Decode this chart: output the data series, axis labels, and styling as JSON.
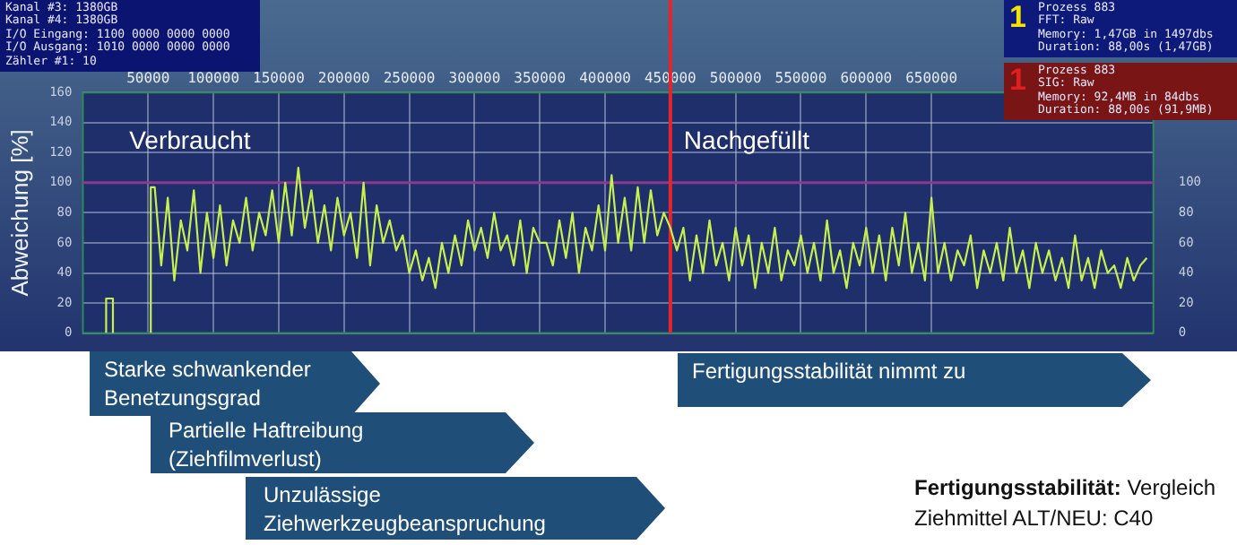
{
  "chart_data": {
    "type": "line",
    "ylabel": "Abweichung [%]",
    "xlim": [
      0,
      820000
    ],
    "xticks": [
      50000,
      100000,
      150000,
      200000,
      250000,
      300000,
      350000,
      400000,
      450000,
      500000,
      550000,
      600000,
      650000
    ],
    "ylim": [
      0,
      160
    ],
    "yticks": [
      0,
      20,
      40,
      60,
      80,
      100,
      120,
      140,
      160
    ],
    "y2lim": [
      0,
      160
    ],
    "y2ticks": [
      0,
      20,
      40,
      60,
      80,
      100
    ],
    "grid": true,
    "ref_lines": [
      {
        "axis": "y",
        "value": 100,
        "color": "#8b3a8e"
      },
      {
        "axis": "x",
        "value": 450000,
        "color": "#e3262c"
      }
    ],
    "series": [
      {
        "color": "#c6f04e",
        "x": [
          17800,
          17800,
          23000,
          23000,
          35000,
          52000,
          52000,
          55000,
          60000,
          65000,
          70000,
          75000,
          80000,
          85000,
          90000,
          95000,
          100000,
          105000,
          110000,
          115000,
          120000,
          125000,
          130000,
          135000,
          140000,
          145000,
          150000,
          155000,
          160000,
          165000,
          170000,
          175000,
          180000,
          185000,
          190000,
          195000,
          200000,
          205000,
          210000,
          215000,
          220000,
          225000,
          230000,
          235000,
          240000,
          245000,
          250000,
          255000,
          260000,
          265000,
          270000,
          275000,
          280000,
          285000,
          290000,
          295000,
          300000,
          305000,
          310000,
          315000,
          320000,
          325000,
          330000,
          335000,
          340000,
          345000,
          350000,
          355000,
          360000,
          365000,
          370000,
          375000,
          380000,
          385000,
          390000,
          395000,
          400000,
          405000,
          410000,
          415000,
          420000,
          425000,
          430000,
          435000,
          440000,
          445000,
          450000,
          455000,
          460000,
          465000,
          470000,
          475000,
          480000,
          485000,
          490000,
          495000,
          500000,
          505000,
          510000,
          515000,
          520000,
          525000,
          530000,
          535000,
          540000,
          545000,
          550000,
          555000,
          560000,
          565000,
          570000,
          575000,
          580000,
          585000,
          590000,
          595000,
          600000,
          605000,
          610000,
          615000,
          620000,
          625000,
          630000,
          635000,
          640000,
          645000,
          650000,
          655000,
          660000,
          665000,
          670000,
          675000,
          680000,
          685000,
          690000,
          695000,
          700000,
          705000,
          710000,
          715000,
          720000,
          725000,
          730000,
          735000,
          740000,
          745000,
          750000,
          755000,
          760000,
          765000,
          770000,
          775000,
          780000,
          785000,
          790000,
          795000,
          800000,
          805000,
          810000,
          815000
        ],
        "values": [
          0,
          23,
          23,
          0,
          null,
          0,
          97,
          97,
          45,
          90,
          35,
          75,
          55,
          95,
          40,
          80,
          50,
          85,
          45,
          75,
          60,
          90,
          55,
          80,
          65,
          95,
          60,
          100,
          65,
          110,
          70,
          95,
          60,
          85,
          55,
          90,
          65,
          80,
          50,
          100,
          45,
          85,
          60,
          75,
          55,
          65,
          40,
          55,
          35,
          50,
          30,
          60,
          40,
          65,
          45,
          75,
          55,
          70,
          50,
          80,
          55,
          65,
          45,
          75,
          40,
          70,
          60,
          60,
          45,
          75,
          50,
          80,
          40,
          70,
          55,
          85,
          55,
          105,
          60,
          90,
          55,
          97,
          60,
          95,
          65,
          80,
          70,
          55,
          70,
          35,
          65,
          40,
          75,
          45,
          60,
          35,
          70,
          45,
          65,
          30,
          60,
          40,
          70,
          35,
          55,
          45,
          65,
          40,
          60,
          35,
          75,
          40,
          55,
          30,
          60,
          45,
          70,
          40,
          65,
          35,
          70,
          45,
          80,
          40,
          60,
          35,
          90,
          40,
          60,
          35,
          55,
          45,
          65,
          30,
          55,
          40,
          60,
          35,
          70,
          40,
          55,
          30,
          60,
          40,
          55,
          35,
          50,
          30,
          65,
          35,
          50,
          30,
          55,
          40,
          45,
          30,
          50,
          35,
          45,
          50
        ]
      }
    ],
    "annotations": [
      "Verbraucht",
      "Nachgefüllt",
      "Starke schwankender Benetzungsgrad",
      "Partielle Haftreibung (Ziehfilmverlust)",
      "Unzulässige Ziehwerkzeugbeanspruchung",
      "Fertigungsstabilität nimmt zu",
      "Fertigungsstabilität:",
      "Vergleich Ziehmittel ALT/NEU: C40",
      "Kanal #3: 1380GB",
      "Kanal #4: 1380GB",
      "I/O Eingang: 1100 0000 0000 0000",
      "I/O Ausgang: 1010 0000 0000 0000",
      "Zähler #1: 10",
      "1",
      "Prozess 883",
      "FFT: Raw",
      "Memory: 1,47GB in 1497dbs",
      "Duration: 88,00s (1,47GB)",
      "1",
      "Prozess 883",
      "SIG: Raw",
      "Memory: 92,4MB in 84dbs",
      "Duration: 88,00s (91,9MB)"
    ]
  }
}
